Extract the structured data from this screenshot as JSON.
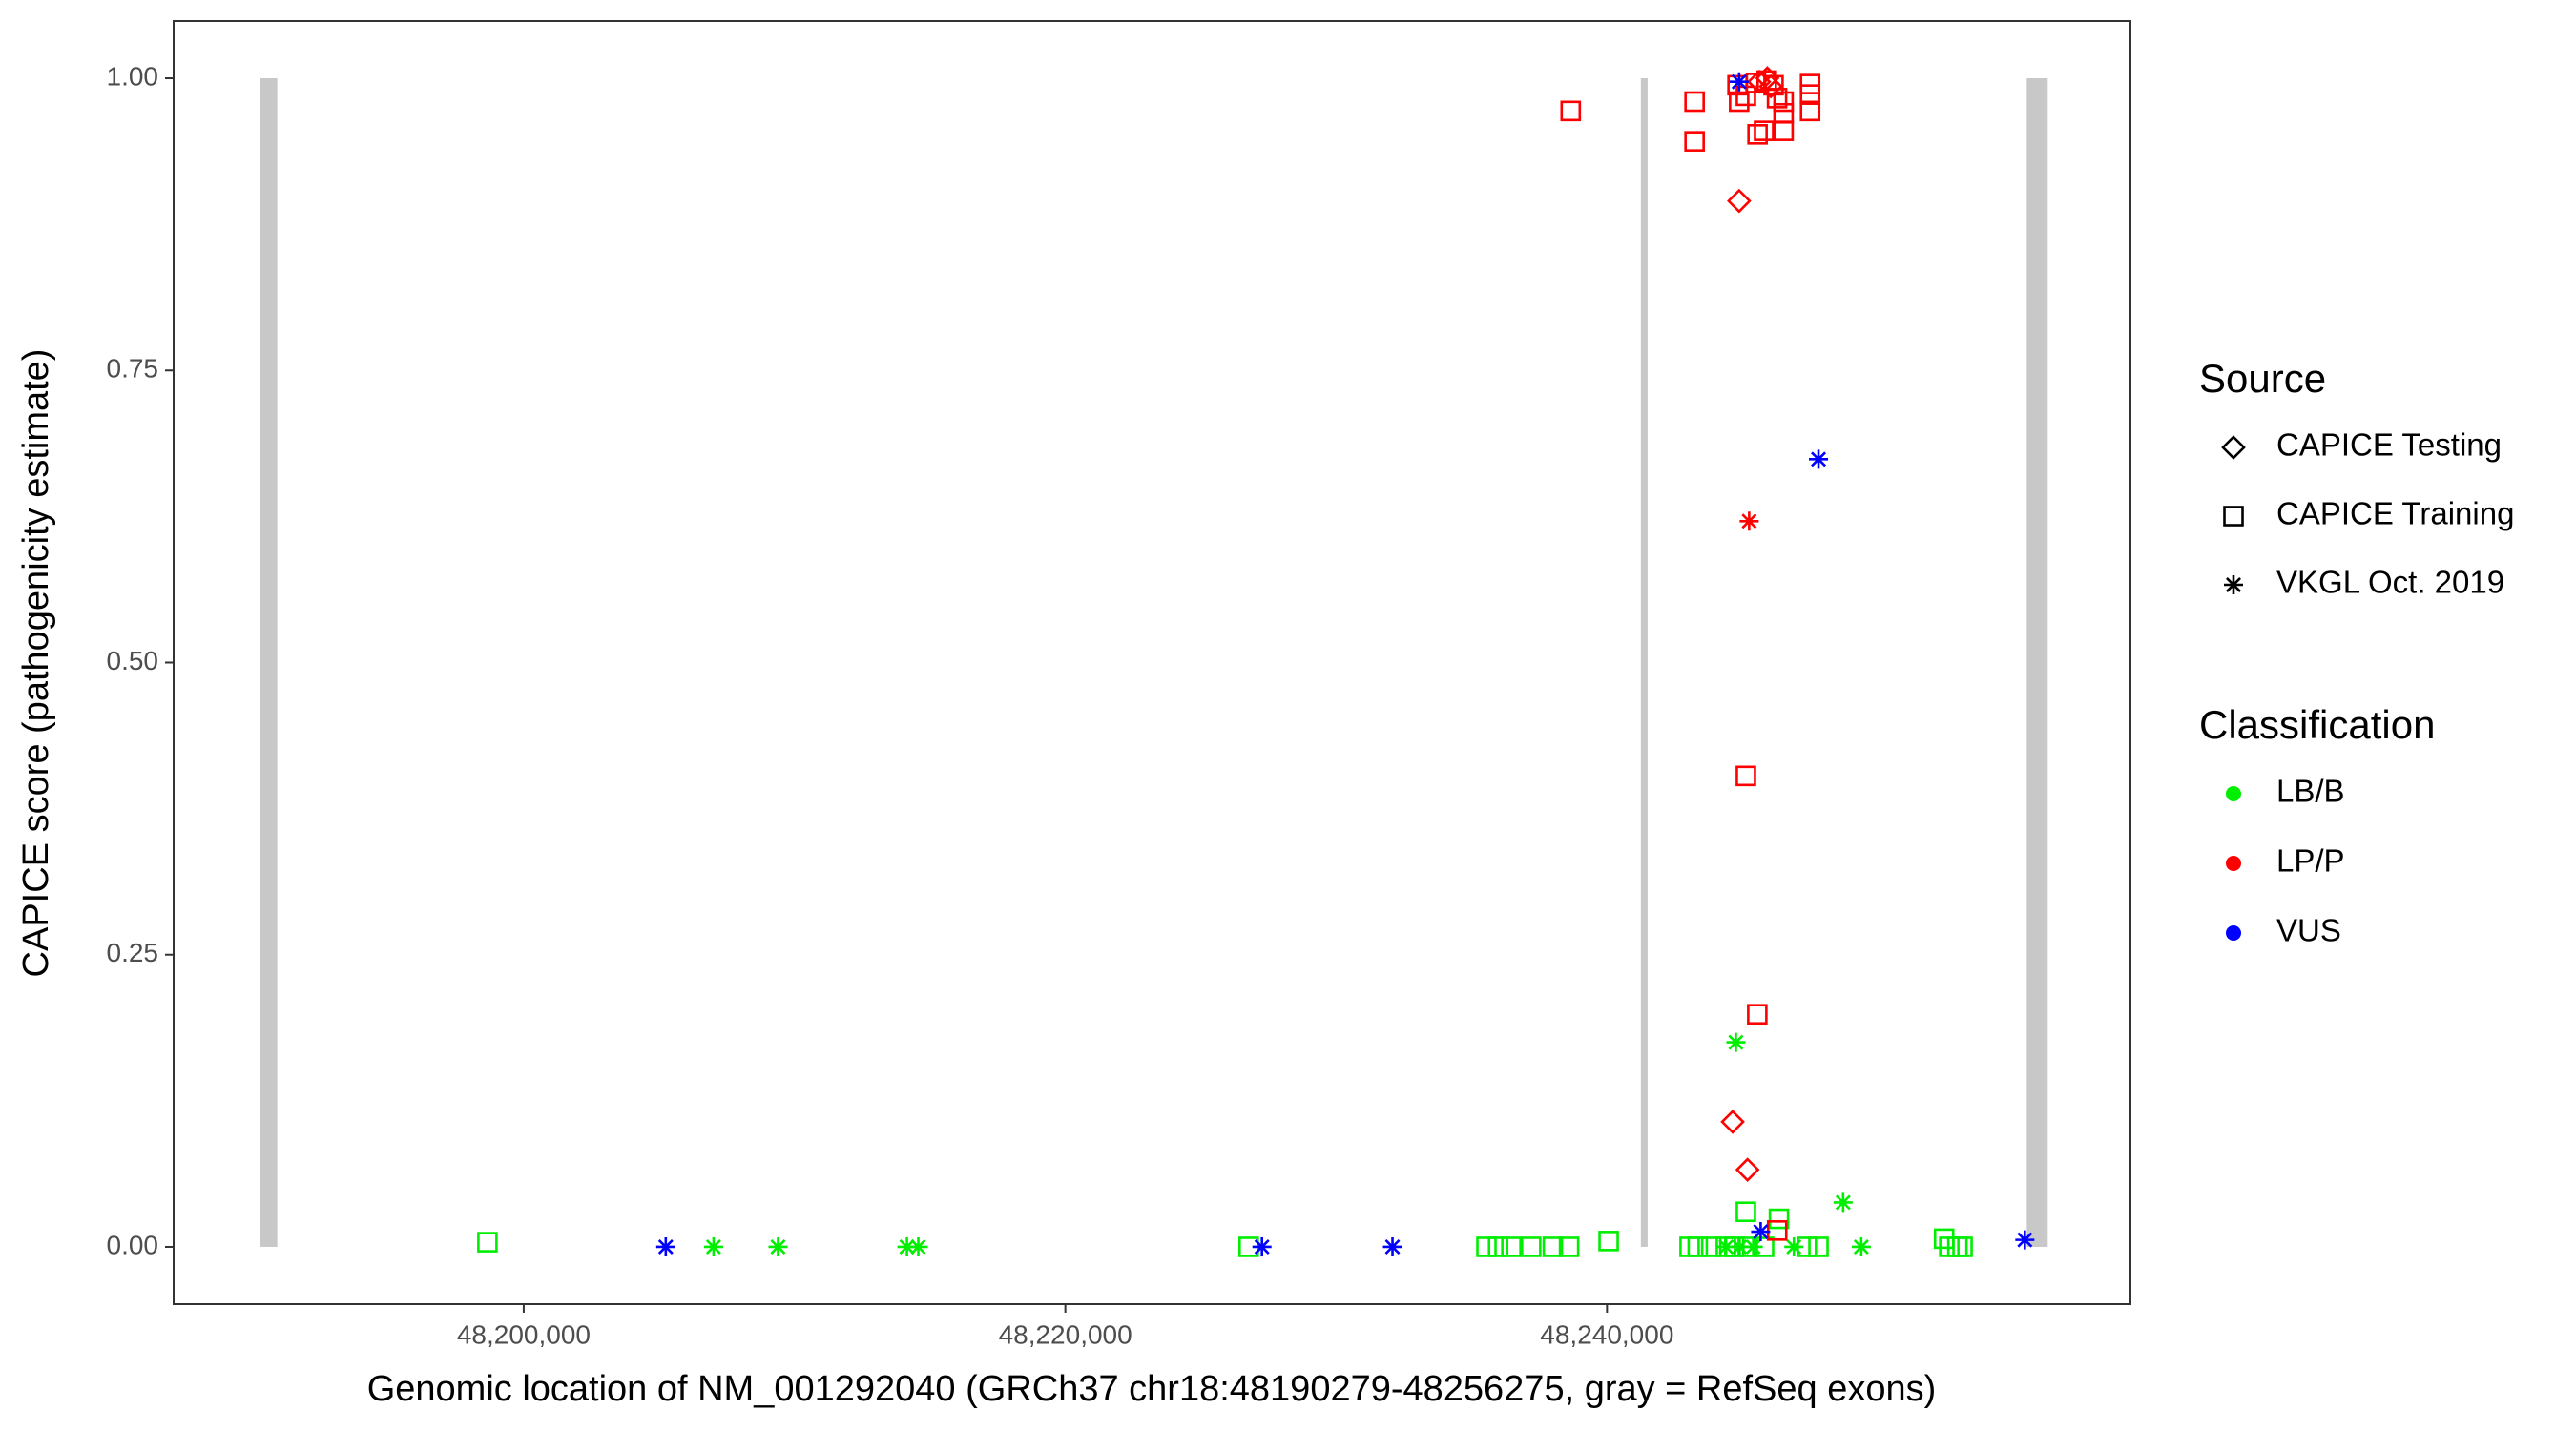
{
  "chart_data": {
    "type": "scatter",
    "x_label": "Genomic location of NM_001292040 (GRCh37 chr18:48190279-48256275, gray = RefSeq exons)",
    "y_label": "CAPICE score (pathogenicity estimate)",
    "xlim": [
      48187073,
      48259329
    ],
    "ylim": [
      -0.049,
      1.049
    ],
    "xticks": [
      {
        "value": 48200000,
        "label": "48,200,000"
      },
      {
        "value": 48220000,
        "label": "48,220,000"
      },
      {
        "value": 48240000,
        "label": "48,240,000"
      }
    ],
    "yticks": [
      {
        "value": 0,
        "label": "0.00"
      },
      {
        "value": 0.25,
        "label": "0.25"
      },
      {
        "value": 0.5,
        "label": "0.50"
      },
      {
        "value": 0.75,
        "label": "0.75"
      },
      {
        "value": 1,
        "label": "1.00"
      }
    ],
    "grid": false,
    "exon_color": "#c8c8c8",
    "exon_ylim": [
      0,
      1
    ],
    "exons": [
      [
        48190279,
        48190900
      ],
      [
        48241250,
        48241500
      ],
      [
        48255500,
        48256275
      ]
    ],
    "legend": {
      "source_title": "Source",
      "sources": [
        {
          "name": "CAPICE Testing",
          "shape": "diamond"
        },
        {
          "name": "CAPICE Training",
          "shape": "square"
        },
        {
          "name": "VKGL Oct. 2019",
          "shape": "asterisk"
        }
      ],
      "classification_title": "Classification",
      "classifications": [
        {
          "name": "LB/B",
          "color": "#00ee00"
        },
        {
          "name": "LP/P",
          "color": "#ff0000"
        },
        {
          "name": "VUS",
          "color": "#0000ff"
        }
      ]
    },
    "series": [
      {
        "source": "CAPICE Training",
        "classification": "LB/B",
        "x": [
          48198660,
          48226770,
          48235550,
          48235980,
          48236470,
          48237200,
          48238000,
          48238600,
          48240060,
          48243050,
          48243350,
          48243850,
          48244390,
          48245130,
          48246350,
          48247380,
          48247810,
          48252450,
          48252640,
          48252940,
          48253130,
          48244700,
          48245200,
          48245800
        ],
        "y": [
          0.004,
          0,
          0,
          0,
          0,
          0,
          0,
          0,
          0.005,
          0,
          0,
          0,
          0,
          0.03,
          0.024,
          0,
          0,
          0.007,
          0,
          0,
          0,
          0,
          0,
          0
        ]
      },
      {
        "source": "VKGL Oct. 2019",
        "classification": "LB/B",
        "x": [
          48207010,
          48209390,
          48214150,
          48214570,
          48244760,
          48248720,
          48249390,
          48244400,
          48244900,
          48245400,
          48246900
        ],
        "y": [
          0,
          0,
          0,
          0,
          0.175,
          0.038,
          0,
          0,
          0,
          0,
          0
        ]
      },
      {
        "source": "CAPICE Training",
        "classification": "LP/P",
        "x": [
          48238660,
          48243235,
          48243235,
          48244820,
          48244880,
          48245130,
          48245500,
          48245900,
          48246150,
          48246280,
          48246520,
          48246520,
          48246520,
          48245800,
          48245560,
          48247500,
          48247500,
          48247500,
          48245130,
          48245550,
          48246285
        ],
        "y": [
          0.972,
          0.98,
          0.946,
          0.994,
          0.98,
          0.985,
          0.996,
          0.998,
          0.994,
          0.983,
          0.98,
          0.97,
          0.955,
          0.955,
          0.952,
          0.995,
          0.986,
          0.972,
          0.403,
          0.199,
          0.014
        ]
      },
      {
        "source": "CAPICE Testing",
        "classification": "LP/P",
        "x": [
          48244880,
          48244640,
          48245190,
          48245620,
          48245920,
          48246050
        ],
        "y": [
          0.895,
          0.107,
          0.066,
          0.997,
          1.0,
          0.993
        ]
      },
      {
        "source": "VKGL Oct. 2019",
        "classification": "LP/P",
        "x": [
          48245250
        ],
        "y": [
          0.621
        ]
      },
      {
        "source": "VKGL Oct. 2019",
        "classification": "VUS",
        "x": [
          48244880,
          48247810,
          48205245,
          48227260,
          48232080,
          48245675,
          48255430
        ],
        "y": [
          0.997,
          0.674,
          0,
          0,
          0,
          0.013,
          0.006
        ]
      }
    ]
  }
}
